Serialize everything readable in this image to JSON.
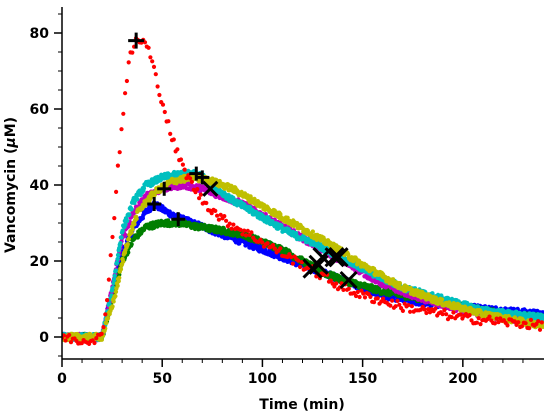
{
  "chart_data": {
    "type": "scatter",
    "xlabel": "Time (min)",
    "ylabel_prefix": "Vancomycin (",
    "ylabel_mu": "μ",
    "ylabel_unit": "M)",
    "xlim": [
      0,
      240
    ],
    "ylim": [
      -6,
      88
    ],
    "x_ticks": [
      0,
      50,
      100,
      150,
      200
    ],
    "y_ticks": [
      0,
      20,
      40,
      60,
      80
    ],
    "grid": false,
    "series": [
      {
        "color": "#ff0000",
        "style": "sparse-dots",
        "points": [
          [
            0,
            0
          ],
          [
            10,
            -1
          ],
          [
            20,
            0
          ],
          [
            22,
            8
          ],
          [
            25,
            25
          ],
          [
            28,
            45
          ],
          [
            31,
            62
          ],
          [
            34,
            74
          ],
          [
            37,
            78
          ],
          [
            40,
            78
          ],
          [
            43,
            76
          ],
          [
            46,
            70
          ],
          [
            50,
            62
          ],
          [
            55,
            52
          ],
          [
            60,
            45
          ],
          [
            65,
            40
          ],
          [
            70,
            36
          ],
          [
            80,
            31
          ],
          [
            90,
            28
          ],
          [
            100,
            25
          ],
          [
            110,
            22
          ],
          [
            120,
            19
          ],
          [
            130,
            16
          ],
          [
            140,
            13
          ],
          [
            150,
            11
          ],
          [
            170,
            8
          ],
          [
            200,
            5
          ],
          [
            240,
            3
          ]
        ],
        "peak": [
          37,
          78
        ],
        "halfpoint": [
          128,
          19
        ]
      },
      {
        "color": "#0000ff",
        "style": "dense",
        "points": [
          [
            0,
            0
          ],
          [
            20,
            0
          ],
          [
            24,
            10
          ],
          [
            30,
            22
          ],
          [
            36,
            29
          ],
          [
            42,
            33
          ],
          [
            46,
            35
          ],
          [
            52,
            33
          ],
          [
            60,
            31
          ],
          [
            70,
            29
          ],
          [
            80,
            27
          ],
          [
            90,
            25
          ],
          [
            100,
            23
          ],
          [
            110,
            21
          ],
          [
            120,
            19
          ],
          [
            130,
            17
          ],
          [
            140,
            15
          ],
          [
            160,
            11
          ],
          [
            180,
            9
          ],
          [
            200,
            8
          ],
          [
            220,
            7
          ],
          [
            240,
            6
          ]
        ],
        "peak": [
          46,
          35
        ],
        "halfpoint": [
          125,
          18
        ]
      },
      {
        "color": "#007f00",
        "style": "dense",
        "points": [
          [
            0,
            0
          ],
          [
            20,
            0
          ],
          [
            24,
            8
          ],
          [
            30,
            20
          ],
          [
            36,
            26
          ],
          [
            42,
            29
          ],
          [
            50,
            30
          ],
          [
            58,
            30
          ],
          [
            68,
            29
          ],
          [
            80,
            28
          ],
          [
            90,
            27
          ],
          [
            100,
            25
          ],
          [
            110,
            23
          ],
          [
            120,
            20
          ],
          [
            130,
            17
          ],
          [
            140,
            15
          ],
          [
            160,
            12
          ],
          [
            180,
            10
          ],
          [
            200,
            8
          ],
          [
            220,
            6
          ],
          [
            240,
            5
          ]
        ],
        "peak": [
          58,
          31
        ],
        "halfpoint": [
          143,
          15
        ]
      },
      {
        "color": "#bf00bf",
        "style": "dense",
        "points": [
          [
            0,
            0
          ],
          [
            20,
            0
          ],
          [
            24,
            10
          ],
          [
            30,
            26
          ],
          [
            36,
            33
          ],
          [
            42,
            37
          ],
          [
            50,
            39
          ],
          [
            60,
            40
          ],
          [
            70,
            39
          ],
          [
            80,
            37
          ],
          [
            90,
            35
          ],
          [
            100,
            32
          ],
          [
            110,
            29
          ],
          [
            120,
            26
          ],
          [
            130,
            23
          ],
          [
            140,
            20
          ],
          [
            160,
            14
          ],
          [
            180,
            10
          ],
          [
            200,
            7
          ],
          [
            220,
            5
          ],
          [
            240,
            4
          ]
        ],
        "peak": [
          51,
          39
        ],
        "halfpoint": [
          130,
          21
        ]
      },
      {
        "color": "#00bfbf",
        "style": "dense",
        "points": [
          [
            0,
            0
          ],
          [
            20,
            0
          ],
          [
            25,
            12
          ],
          [
            30,
            28
          ],
          [
            36,
            36
          ],
          [
            42,
            40
          ],
          [
            50,
            42
          ],
          [
            60,
            43
          ],
          [
            68,
            43
          ],
          [
            75,
            40
          ],
          [
            85,
            36
          ],
          [
            95,
            33
          ],
          [
            105,
            30
          ],
          [
            115,
            27
          ],
          [
            125,
            25
          ],
          [
            135,
            22
          ],
          [
            150,
            18
          ],
          [
            170,
            13
          ],
          [
            190,
            10
          ],
          [
            210,
            7
          ],
          [
            240,
            5
          ]
        ],
        "peak": [
          67,
          43
        ],
        "halfpoint": [
          136,
          21
        ]
      },
      {
        "color": "#bfbf00",
        "style": "dense",
        "points": [
          [
            0,
            0
          ],
          [
            20,
            0
          ],
          [
            26,
            10
          ],
          [
            32,
            24
          ],
          [
            38,
            33
          ],
          [
            46,
            38
          ],
          [
            55,
            41
          ],
          [
            65,
            42
          ],
          [
            75,
            41
          ],
          [
            85,
            39
          ],
          [
            95,
            36
          ],
          [
            105,
            33
          ],
          [
            115,
            30
          ],
          [
            125,
            27
          ],
          [
            135,
            24
          ],
          [
            150,
            19
          ],
          [
            170,
            13
          ],
          [
            190,
            9
          ],
          [
            210,
            6
          ],
          [
            240,
            3
          ]
        ],
        "peak": [
          70,
          42
        ],
        "halfpoint": [
          138,
          21
        ]
      }
    ],
    "markers": [
      {
        "kind": "plus",
        "x": 37,
        "y": 78,
        "size": 8
      },
      {
        "kind": "plus",
        "x": 46,
        "y": 35,
        "size": 7
      },
      {
        "kind": "plus",
        "x": 51,
        "y": 39,
        "size": 7
      },
      {
        "kind": "plus",
        "x": 58,
        "y": 31,
        "size": 7
      },
      {
        "kind": "plus",
        "x": 67,
        "y": 43,
        "size": 7
      },
      {
        "kind": "plus",
        "x": 70,
        "y": 42,
        "size": 7
      },
      {
        "kind": "cross",
        "x": 74,
        "y": 39,
        "size": 7
      },
      {
        "kind": "cross",
        "x": 125,
        "y": 18,
        "size": 9
      },
      {
        "kind": "cross",
        "x": 128,
        "y": 19,
        "size": 9
      },
      {
        "kind": "cross",
        "x": 130,
        "y": 21,
        "size": 9
      },
      {
        "kind": "cross",
        "x": 136,
        "y": 21,
        "size": 9
      },
      {
        "kind": "cross",
        "x": 138,
        "y": 21,
        "size": 9
      },
      {
        "kind": "cross",
        "x": 143,
        "y": 15,
        "size": 8
      }
    ]
  }
}
